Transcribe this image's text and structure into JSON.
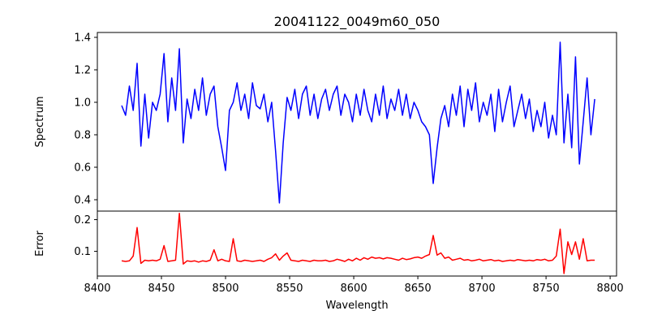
{
  "chart_data": [
    {
      "type": "line",
      "title": "20041122_0049m60_050",
      "xlabel": "",
      "ylabel": "Spectrum",
      "xlim": [
        8400,
        8805
      ],
      "ylim": [
        0.33,
        1.43
      ],
      "yticks": [
        0.4,
        0.6,
        0.8,
        1.0,
        1.2,
        1.4
      ],
      "ytick_labels": [
        "0.4",
        "0.6",
        "0.8",
        "1.0",
        "1.2",
        "1.4"
      ],
      "color": "#0000ff",
      "x_start": 8419,
      "x_step": 3,
      "values": [
        0.98,
        0.92,
        1.1,
        0.95,
        1.24,
        0.73,
        1.05,
        0.78,
        1.0,
        0.95,
        1.05,
        1.3,
        0.88,
        1.15,
        0.95,
        1.33,
        0.75,
        1.02,
        0.9,
        1.08,
        0.95,
        1.15,
        0.92,
        1.05,
        1.1,
        0.85,
        0.72,
        0.58,
        0.95,
        1.0,
        1.12,
        0.95,
        1.05,
        0.9,
        1.12,
        0.98,
        0.96,
        1.05,
        0.88,
        1.0,
        0.7,
        0.38,
        0.75,
        1.03,
        0.95,
        1.08,
        0.9,
        1.05,
        1.1,
        0.92,
        1.05,
        0.9,
        1.02,
        1.08,
        0.95,
        1.05,
        1.1,
        0.92,
        1.05,
        1.0,
        0.88,
        1.05,
        0.92,
        1.08,
        0.95,
        0.88,
        1.05,
        0.92,
        1.1,
        0.9,
        1.02,
        0.95,
        1.08,
        0.92,
        1.05,
        0.9,
        1.0,
        0.95,
        0.88,
        0.85,
        0.8,
        0.5,
        0.72,
        0.9,
        0.98,
        0.85,
        1.05,
        0.92,
        1.1,
        0.85,
        1.08,
        0.95,
        1.12,
        0.88,
        1.0,
        0.92,
        1.05,
        0.82,
        1.08,
        0.88,
        1.0,
        1.1,
        0.85,
        0.95,
        1.05,
        0.9,
        1.02,
        0.82,
        0.95,
        0.85,
        1.0,
        0.78,
        0.92,
        0.8,
        1.37,
        0.75,
        1.05,
        0.72,
        1.28,
        0.62,
        0.88,
        1.15,
        0.8,
        1.02
      ]
    },
    {
      "type": "line",
      "title": "",
      "xlabel": "Wavelength",
      "ylabel": "Error",
      "xlim": [
        8400,
        8805
      ],
      "ylim": [
        0.022,
        0.227
      ],
      "xticks": [
        8400,
        8450,
        8500,
        8550,
        8600,
        8650,
        8700,
        8750,
        8800
      ],
      "xtick_labels": [
        "8400",
        "8450",
        "8500",
        "8550",
        "8600",
        "8650",
        "8700",
        "8750",
        "8800"
      ],
      "yticks": [
        0.1,
        0.2
      ],
      "ytick_labels": [
        "0.1",
        "0.2"
      ],
      "color": "#ff0000",
      "x_start": 8419,
      "x_step": 3,
      "values": [
        0.07,
        0.068,
        0.07,
        0.085,
        0.175,
        0.062,
        0.072,
        0.07,
        0.072,
        0.07,
        0.075,
        0.118,
        0.068,
        0.07,
        0.072,
        0.22,
        0.06,
        0.07,
        0.068,
        0.07,
        0.066,
        0.07,
        0.068,
        0.072,
        0.105,
        0.07,
        0.075,
        0.07,
        0.068,
        0.14,
        0.07,
        0.068,
        0.072,
        0.07,
        0.068,
        0.07,
        0.072,
        0.068,
        0.075,
        0.08,
        0.092,
        0.072,
        0.085,
        0.095,
        0.072,
        0.07,
        0.068,
        0.072,
        0.07,
        0.068,
        0.072,
        0.07,
        0.07,
        0.072,
        0.068,
        0.07,
        0.075,
        0.072,
        0.068,
        0.075,
        0.07,
        0.078,
        0.072,
        0.08,
        0.075,
        0.082,
        0.078,
        0.08,
        0.076,
        0.08,
        0.078,
        0.075,
        0.072,
        0.078,
        0.074,
        0.076,
        0.08,
        0.082,
        0.078,
        0.085,
        0.09,
        0.15,
        0.088,
        0.095,
        0.078,
        0.082,
        0.072,
        0.075,
        0.078,
        0.072,
        0.074,
        0.07,
        0.072,
        0.075,
        0.07,
        0.072,
        0.074,
        0.07,
        0.072,
        0.068,
        0.07,
        0.072,
        0.07,
        0.074,
        0.072,
        0.07,
        0.072,
        0.07,
        0.074,
        0.072,
        0.075,
        0.07,
        0.072,
        0.085,
        0.17,
        0.03,
        0.13,
        0.09,
        0.13,
        0.075,
        0.14,
        0.07,
        0.072,
        0.072
      ]
    }
  ]
}
